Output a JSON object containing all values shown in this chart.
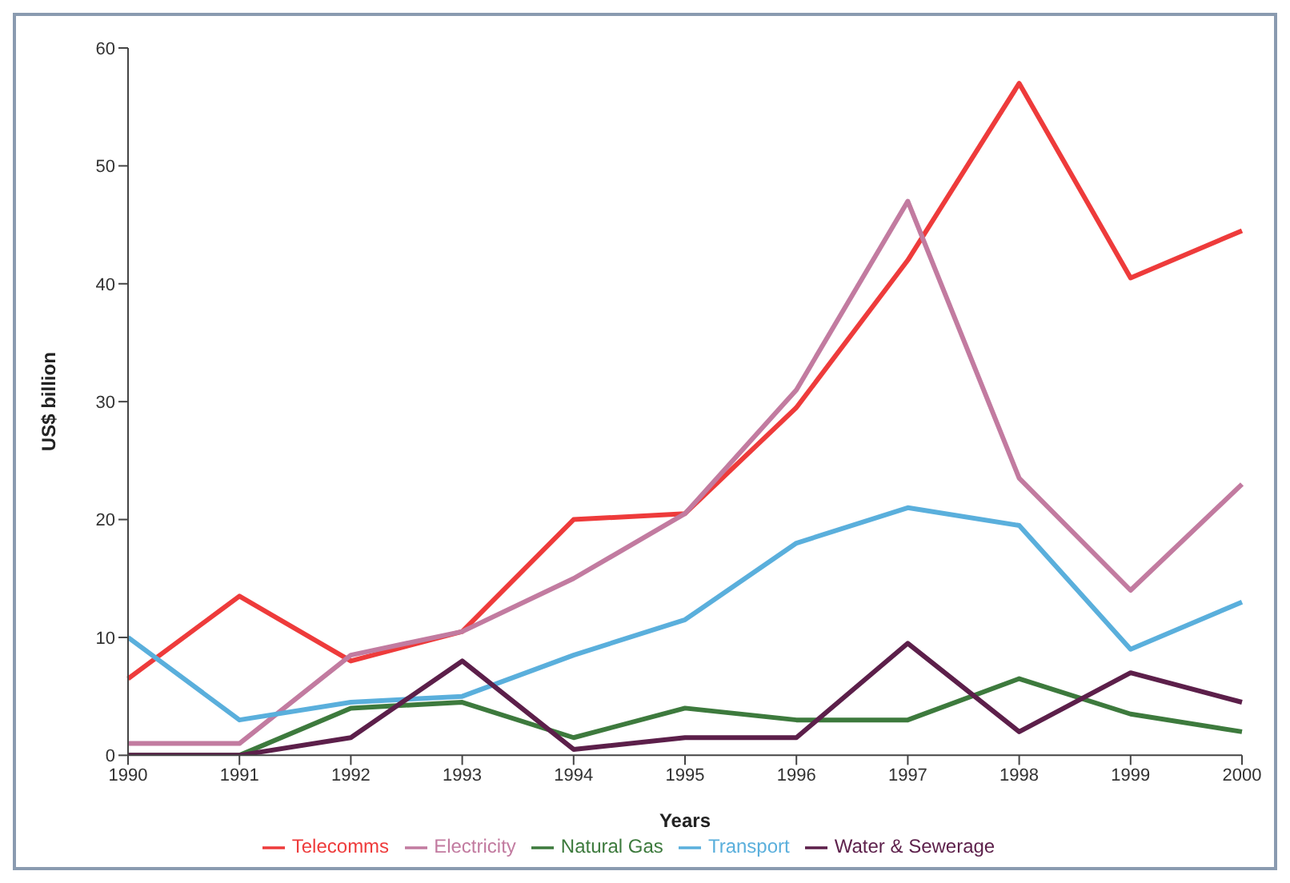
{
  "chart_data": {
    "type": "line",
    "xlabel": "Years",
    "ylabel": "US$ billion",
    "categories": [
      "1990",
      "1991",
      "1992",
      "1993",
      "1994",
      "1995",
      "1996",
      "1997",
      "1998",
      "1999",
      "2000"
    ],
    "ylim": [
      0,
      60
    ],
    "yticks": [
      0,
      10,
      20,
      30,
      40,
      50,
      60
    ],
    "grid": false,
    "legend": "bottom",
    "marker": "none",
    "line_style": "solid",
    "series": [
      {
        "name": "Telecomms",
        "color": "#ee3b3b",
        "values": [
          6.5,
          13.5,
          8,
          10.5,
          20,
          20.5,
          29.5,
          42,
          57,
          40.5,
          44.5
        ]
      },
      {
        "name": "Electricity",
        "color": "#c27ba0",
        "values": [
          1,
          1,
          8.5,
          10.5,
          15,
          20.5,
          31,
          47,
          23.5,
          14,
          23
        ]
      },
      {
        "name": "Natural Gas",
        "color": "#3d7a3d",
        "values": [
          0,
          0,
          4,
          4.5,
          1.5,
          4,
          3,
          3,
          6.5,
          3.5,
          2
        ]
      },
      {
        "name": "Transport",
        "color": "#5aafdc",
        "values": [
          10,
          3,
          4.5,
          5,
          8.5,
          11.5,
          18,
          21,
          19.5,
          9,
          13
        ]
      },
      {
        "name": "Water & Sewerage",
        "color": "#5c1f4a",
        "values": [
          0,
          0,
          1.5,
          8,
          0.5,
          1.5,
          1.5,
          9.5,
          2,
          7,
          4.5
        ]
      }
    ]
  }
}
